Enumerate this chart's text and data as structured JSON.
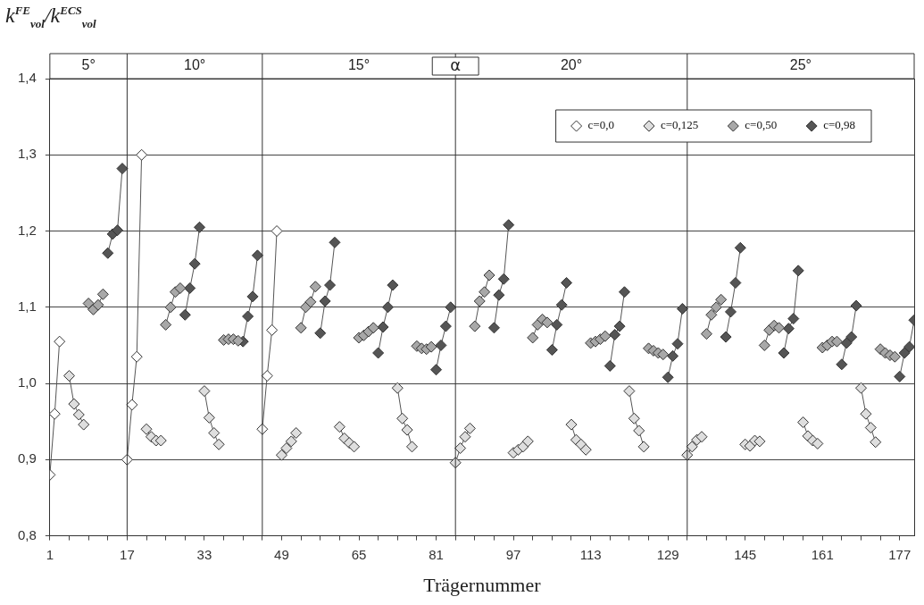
{
  "chart_data": {
    "type": "line",
    "ylabel": "k$^{FE}$$_{vol}$/k$^{ECS}$$_{vol}$",
    "xlabel": "Trägernummer",
    "xlim": [
      1,
      180
    ],
    "xticks": [
      1,
      {
        "value": 5,
        "label": null
      },
      {
        "value": 9,
        "label": null
      },
      {
        "value": 13,
        "label": null
      },
      17,
      {
        "value": 21,
        "label": null
      },
      {
        "value": 25,
        "label": null
      },
      {
        "value": 29,
        "label": null
      },
      33,
      {
        "value": 37,
        "label": null
      },
      {
        "value": 41,
        "label": null
      },
      {
        "value": 45,
        "label": null
      },
      49,
      {
        "value": 53,
        "label": null
      },
      {
        "value": 57,
        "label": null
      },
      {
        "value": 61,
        "label": null
      },
      65,
      {
        "value": 69,
        "label": null
      },
      {
        "value": 73,
        "label": null
      },
      {
        "value": 77,
        "label": null
      },
      81,
      {
        "value": 85,
        "label": null
      },
      {
        "value": 89,
        "label": null
      },
      {
        "value": 93,
        "label": null
      },
      97,
      {
        "value": 101,
        "label": null
      },
      {
        "value": 105,
        "label": null
      },
      {
        "value": 109,
        "label": null
      },
      113,
      {
        "value": 117,
        "label": null
      },
      {
        "value": 121,
        "label": null
      },
      {
        "value": 125,
        "label": null
      },
      129,
      {
        "value": 133,
        "label": null
      },
      {
        "value": 137,
        "label": null
      },
      {
        "value": 141,
        "label": null
      },
      145,
      {
        "value": 149,
        "label": null
      },
      {
        "value": 153,
        "label": null
      },
      {
        "value": 157,
        "label": null
      },
      161,
      {
        "value": 165,
        "label": null
      },
      {
        "value": 169,
        "label": null
      },
      {
        "value": 173,
        "label": null
      },
      177
    ],
    "ylim": [
      0.8,
      1.4
    ],
    "yticks": [
      {
        "value": 0.8,
        "label": "0,8"
      },
      {
        "value": 0.9,
        "label": "0,9"
      },
      {
        "value": 1.0,
        "label": "1,0"
      },
      {
        "value": 1.1,
        "label": "1,1"
      },
      {
        "value": 1.2,
        "label": "1,2"
      },
      {
        "value": 1.3,
        "label": "1,3"
      },
      {
        "value": 1.4,
        "label": "1,4"
      }
    ],
    "grid": "y",
    "legend": "top right",
    "marker": "diamond",
    "ref_lines": [
      {
        "axis": "x",
        "value": 17
      },
      {
        "axis": "x",
        "value": 45
      },
      {
        "axis": "x",
        "value": 85
      },
      {
        "axis": "x",
        "value": 133
      }
    ],
    "annotations": [
      "5°",
      "10°",
      "15°",
      {
        "text": "α",
        "x": 85
      },
      "20°",
      "25°"
    ],
    "series": [
      {
        "name": "c=0,0",
        "color": "#ffffff",
        "x": [
          1,
          2,
          3,
          null,
          17,
          18,
          19,
          20,
          null,
          45,
          46,
          47,
          48
        ],
        "values": [
          0.88,
          0.96,
          1.055,
          null,
          0.9,
          0.972,
          1.035,
          1.3,
          null,
          0.94,
          1.01,
          1.07,
          1.2
        ]
      },
      {
        "name": "c=0,125",
        "color": "#dedede",
        "x": [
          5,
          6,
          7,
          8,
          null,
          21,
          22,
          23,
          24,
          null,
          33,
          34,
          35,
          36,
          null,
          49,
          50,
          51,
          52,
          null,
          61,
          62,
          63,
          64,
          null,
          73,
          74,
          75,
          76,
          null,
          85,
          86,
          87,
          88,
          null,
          97,
          98,
          99,
          100,
          null,
          109,
          110,
          111,
          112,
          null,
          121,
          122,
          123,
          124,
          null,
          133,
          134,
          135,
          136,
          null,
          145,
          146,
          147,
          148,
          null,
          157,
          158,
          159,
          160,
          null,
          169,
          170,
          171,
          172
        ],
        "values": [
          1.01,
          0.973,
          0.959,
          0.946,
          null,
          0.94,
          0.93,
          0.925,
          0.925,
          null,
          0.99,
          0.955,
          0.935,
          0.92,
          null,
          0.906,
          0.915,
          0.924,
          0.935,
          null,
          0.943,
          0.928,
          0.922,
          0.917,
          null,
          0.994,
          0.954,
          0.939,
          0.917,
          null,
          0.896,
          0.915,
          0.93,
          0.941,
          null,
          0.909,
          0.913,
          0.917,
          0.924,
          null,
          0.946,
          0.926,
          0.92,
          0.913,
          null,
          0.99,
          0.954,
          0.938,
          0.917,
          null,
          0.906,
          0.917,
          0.926,
          0.93,
          null,
          0.92,
          0.918,
          0.925,
          0.924,
          null,
          0.949,
          0.931,
          0.925,
          0.921,
          null,
          0.994,
          0.96,
          0.942,
          0.923
        ]
      },
      {
        "name": "c=0,50",
        "color": "#a8a8a8",
        "x": [
          9,
          10,
          11,
          12,
          null,
          25,
          26,
          27,
          28,
          null,
          37,
          38,
          39,
          40,
          null,
          53,
          54,
          55,
          56,
          null,
          65,
          66,
          67,
          68,
          null,
          77,
          78,
          79,
          80,
          null,
          89,
          90,
          91,
          92,
          null,
          101,
          102,
          103,
          104,
          null,
          113,
          114,
          115,
          116,
          null,
          125,
          126,
          127,
          128,
          null,
          137,
          138,
          139,
          140,
          null,
          149,
          150,
          151,
          152,
          null,
          161,
          162,
          163,
          164,
          null,
          173,
          174,
          175,
          176
        ],
        "values": [
          1.105,
          1.097,
          1.103,
          1.117,
          null,
          1.077,
          1.1,
          1.12,
          1.125,
          null,
          1.057,
          1.058,
          1.058,
          1.056,
          null,
          1.073,
          1.1,
          1.107,
          1.127,
          null,
          1.06,
          1.063,
          1.068,
          1.073,
          null,
          1.049,
          1.046,
          1.045,
          1.048,
          null,
          1.075,
          1.108,
          1.12,
          1.142,
          null,
          1.06,
          1.077,
          1.084,
          1.08,
          null,
          1.053,
          1.055,
          1.058,
          1.062,
          null,
          1.046,
          1.043,
          1.04,
          1.038,
          null,
          1.065,
          1.09,
          1.1,
          1.11,
          null,
          1.05,
          1.07,
          1.076,
          1.073,
          null,
          1.047,
          1.05,
          1.055,
          1.055,
          null,
          1.045,
          1.04,
          1.037,
          1.035
        ]
      },
      {
        "name": "c=0,98",
        "color": "#555555",
        "x": [
          13,
          14,
          15,
          16,
          null,
          29,
          30,
          31,
          32,
          null,
          41,
          42,
          43,
          44,
          null,
          57,
          58,
          59,
          60,
          null,
          69,
          70,
          71,
          72,
          null,
          81,
          82,
          83,
          84,
          null,
          93,
          94,
          95,
          96,
          null,
          105,
          106,
          107,
          108,
          null,
          117,
          118,
          119,
          120,
          null,
          129,
          130,
          131,
          132,
          null,
          141,
          142,
          143,
          144,
          null,
          153,
          154,
          155,
          156,
          null,
          165,
          166,
          167,
          168,
          null,
          177,
          178,
          179,
          180
        ],
        "values": [
          1.171,
          1.196,
          1.201,
          1.282,
          null,
          1.09,
          1.125,
          1.157,
          1.205,
          null,
          1.055,
          1.088,
          1.114,
          1.168,
          null,
          1.066,
          1.108,
          1.129,
          1.185,
          null,
          1.04,
          1.074,
          1.1,
          1.129,
          null,
          1.018,
          1.05,
          1.075,
          1.1,
          null,
          1.073,
          1.116,
          1.137,
          1.208,
          null,
          1.044,
          1.077,
          1.103,
          1.132,
          null,
          1.023,
          1.064,
          1.075,
          1.12,
          null,
          1.008,
          1.036,
          1.052,
          1.098,
          null,
          1.061,
          1.094,
          1.132,
          1.178,
          null,
          1.04,
          1.072,
          1.085,
          1.148,
          null,
          1.025,
          1.053,
          1.061,
          1.102,
          null,
          1.009,
          1.04,
          1.048,
          1.083
        ]
      }
    ]
  }
}
